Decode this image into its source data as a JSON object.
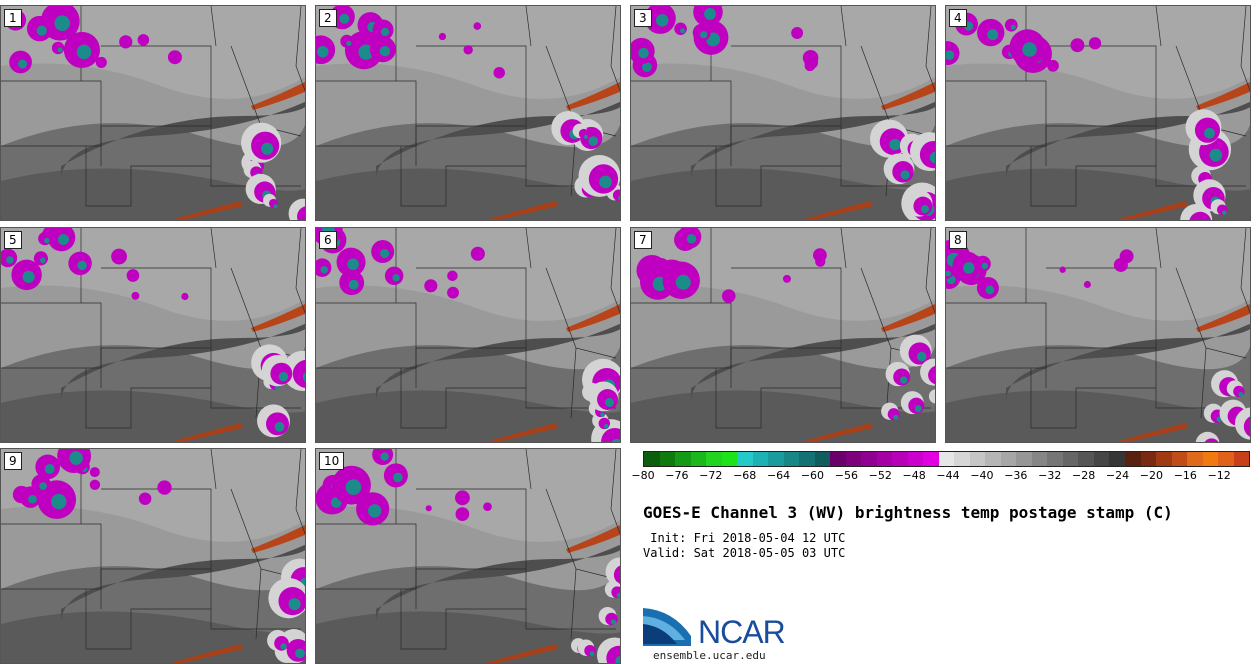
{
  "panels": [
    {
      "label": "1"
    },
    {
      "label": "2"
    },
    {
      "label": "3"
    },
    {
      "label": "4"
    },
    {
      "label": "5"
    },
    {
      "label": "6"
    },
    {
      "label": "7"
    },
    {
      "label": "8"
    },
    {
      "label": "9"
    },
    {
      "label": "10"
    }
  ],
  "colorbar": {
    "colors": [
      "#0b5e0b",
      "#0f7a10",
      "#149a16",
      "#1ab81b",
      "#22d41f",
      "#1fe31a",
      "#26c9c9",
      "#1fb2b4",
      "#1a9c9e",
      "#178788",
      "#137273",
      "#0f5d5e",
      "#6a006a",
      "#7d007d",
      "#900090",
      "#a400a4",
      "#b800b8",
      "#cc00cc",
      "#e000e0",
      "#e6e6e6",
      "#d6d6d6",
      "#c6c6c6",
      "#b6b6b6",
      "#a6a6a6",
      "#969696",
      "#868686",
      "#767676",
      "#666666",
      "#565656",
      "#464646",
      "#363636",
      "#5a2010",
      "#7a2a12",
      "#a03a14",
      "#c04c18",
      "#e06a1c",
      "#f07a10",
      "#e0621a",
      "#c8401a"
    ],
    "ticks": [
      "−80",
      "−76",
      "−72",
      "−68",
      "−64",
      "−60",
      "−56",
      "−52",
      "−48",
      "−44",
      "−40",
      "−36",
      "−32",
      "−28",
      "−24",
      "−20",
      "−16",
      "−12"
    ]
  },
  "title": "GOES-E Channel 3 (WV) brightness temp postage stamp (C)",
  "init": " Init: Fri 2018-05-04 12 UTC",
  "valid": "Valid: Sat 2018-05-05 03 UTC",
  "logo": {
    "name": "NCAR",
    "url": "ensemble.ucar.edu"
  }
}
